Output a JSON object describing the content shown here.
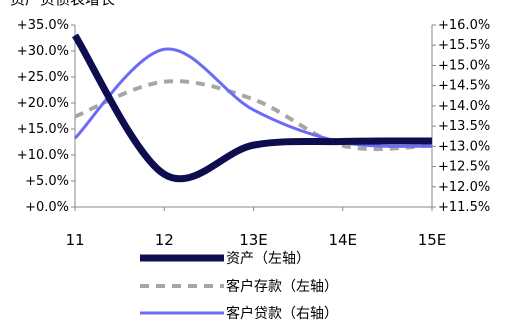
{
  "chart_data": {
    "type": "line",
    "title": "资产负债表增长",
    "categories": [
      "11",
      "12",
      "13E",
      "14E",
      "15E"
    ],
    "axes": {
      "left": {
        "min": 0,
        "max": 35,
        "ticks": [
          "+0.0%",
          "+5.0%",
          "+10.0%",
          "+15.0%",
          "+20.0%",
          "+25.0%",
          "+30.0%",
          "+35.0%"
        ]
      },
      "right": {
        "min": 11.5,
        "max": 16,
        "ticks": [
          "+11.5%",
          "+12.0%",
          "+12.5%",
          "+13.0%",
          "+13.5%",
          "+14.0%",
          "+14.5%",
          "+15.0%",
          "+15.5%",
          "+16.0%"
        ]
      }
    },
    "series": [
      {
        "name": "资产（左轴）",
        "axis": "left",
        "style": "solid",
        "color": "#0d0d4f",
        "values": [
          33.0,
          6.3,
          11.9,
          12.6,
          12.7
        ]
      },
      {
        "name": "客户存款（左轴）",
        "axis": "left",
        "style": "dashed",
        "color": "#a6a6a6",
        "values": [
          17.4,
          24.1,
          20.7,
          11.8,
          11.8
        ]
      },
      {
        "name": "客户贷款（右轴）",
        "axis": "right",
        "style": "solid",
        "color": "#6b6bf5",
        "values": [
          13.2,
          15.4,
          13.9,
          13.1,
          13.0
        ]
      }
    ],
    "grid": false,
    "legend_position": "bottom"
  }
}
